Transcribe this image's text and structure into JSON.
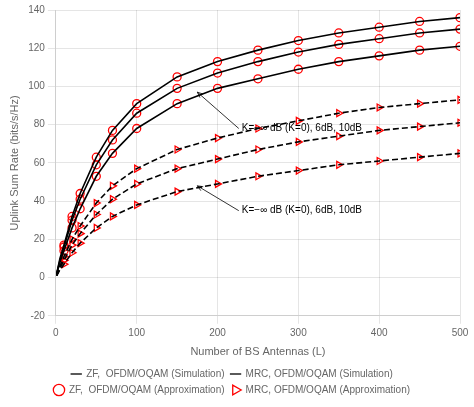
{
  "chart_data": {
    "type": "line",
    "xlabel": "Number of BS Antennas (L)",
    "ylabel": "Uplink Sum Rate (bits/s/Hz)",
    "xlim": [
      0,
      500
    ],
    "ylim": [
      -20,
      140
    ],
    "xticks": [
      0,
      100,
      200,
      300,
      400,
      500
    ],
    "yticks": [
      -20,
      0,
      20,
      40,
      60,
      80,
      100,
      120,
      140
    ],
    "grid": true,
    "legend": "bottom",
    "series": [
      {
        "name": "ZF,  OFDM/OQAM (Simulation)",
        "color": "#000000",
        "line_style": "solid",
        "marker": "none",
        "x": [
          1,
          5,
          10,
          20,
          30,
          50,
          70,
          100,
          150,
          200,
          250,
          300,
          350,
          400,
          450,
          500
        ],
        "values": [
          2,
          8,
          14,
          26,
          36,
          53,
          65,
          78,
          91,
          99,
          104,
          109,
          113,
          116,
          119,
          121
        ]
      },
      {
        "color": "#000000",
        "line_style": "solid",
        "marker": "none",
        "x": [
          1,
          5,
          10,
          20,
          30,
          50,
          70,
          100,
          150,
          200,
          250,
          300,
          350,
          400,
          450,
          500
        ],
        "values": [
          2,
          9,
          16,
          30,
          41,
          59,
          72,
          86,
          99,
          107,
          113,
          118,
          122,
          125,
          128,
          130
        ]
      },
      {
        "color": "#000000",
        "line_style": "solid",
        "marker": "none",
        "x": [
          1,
          5,
          10,
          20,
          30,
          50,
          70,
          100,
          150,
          200,
          250,
          300,
          350,
          400,
          450,
          500
        ],
        "values": [
          2,
          10,
          17,
          32,
          44,
          63,
          77,
          91,
          105,
          113,
          119,
          124,
          128,
          131,
          134,
          136
        ]
      },
      {
        "name": "MRC, OFDM/OQAM (Simulation)",
        "color": "#000000",
        "line_style": "dashed",
        "marker": "none",
        "x": [
          1,
          5,
          10,
          20,
          30,
          50,
          70,
          100,
          150,
          200,
          250,
          300,
          350,
          400,
          450,
          500
        ],
        "values": [
          1,
          4,
          7,
          13,
          18,
          26,
          32,
          38,
          45,
          49,
          53,
          56,
          59,
          61,
          63,
          65
        ]
      },
      {
        "color": "#000000",
        "line_style": "dashed",
        "marker": "none",
        "x": [
          1,
          5,
          10,
          20,
          30,
          50,
          70,
          100,
          150,
          200,
          250,
          300,
          350,
          400,
          450,
          500
        ],
        "values": [
          1,
          5,
          9,
          17,
          23,
          33,
          41,
          49,
          57,
          62,
          67,
          71,
          74,
          77,
          79,
          81
        ]
      },
      {
        "color": "#000000",
        "line_style": "dashed",
        "marker": "none",
        "x": [
          1,
          5,
          10,
          20,
          30,
          50,
          70,
          100,
          150,
          200,
          250,
          300,
          350,
          400,
          450,
          500
        ],
        "values": [
          1,
          6,
          11,
          20,
          27,
          39,
          48,
          57,
          67,
          73,
          78,
          82,
          86,
          89,
          91,
          93
        ]
      },
      {
        "name": "ZF,  OFDM/OQAM (Approximation)",
        "color": "#ff0000",
        "line_style": "none",
        "marker": "circle",
        "x": [
          10,
          20,
          30,
          50,
          70,
          100,
          150,
          200,
          250,
          300,
          350,
          400,
          450,
          500
        ],
        "values": [
          14,
          26,
          36,
          53,
          65,
          78,
          91,
          99,
          104,
          109,
          113,
          116,
          119,
          121
        ]
      },
      {
        "color": "#ff0000",
        "line_style": "none",
        "marker": "circle",
        "x": [
          10,
          20,
          30,
          50,
          70,
          100,
          150,
          200,
          250,
          300,
          350,
          400,
          450,
          500
        ],
        "values": [
          16,
          30,
          41,
          59,
          72,
          86,
          99,
          107,
          113,
          118,
          122,
          125,
          128,
          130
        ]
      },
      {
        "color": "#ff0000",
        "line_style": "none",
        "marker": "circle",
        "x": [
          10,
          20,
          30,
          50,
          70,
          100,
          150,
          200,
          250,
          300,
          350,
          400,
          450,
          500
        ],
        "values": [
          17,
          32,
          44,
          63,
          77,
          91,
          105,
          113,
          119,
          124,
          128,
          131,
          134,
          136
        ]
      },
      {
        "name": "MRC, OFDM/OQAM (Approximation)",
        "color": "#ff0000",
        "line_style": "none",
        "marker": "triangle-right",
        "x": [
          10,
          20,
          30,
          50,
          70,
          100,
          150,
          200,
          250,
          300,
          350,
          400,
          450,
          500
        ],
        "values": [
          7,
          13,
          18,
          26,
          32,
          38,
          45,
          49,
          53,
          56,
          59,
          61,
          63,
          65
        ]
      },
      {
        "color": "#ff0000",
        "line_style": "none",
        "marker": "triangle-right",
        "x": [
          10,
          20,
          30,
          50,
          70,
          100,
          150,
          200,
          250,
          300,
          350,
          400,
          450,
          500
        ],
        "values": [
          9,
          17,
          23,
          33,
          41,
          49,
          57,
          62,
          67,
          71,
          74,
          77,
          79,
          81
        ]
      },
      {
        "color": "#ff0000",
        "line_style": "none",
        "marker": "triangle-right",
        "x": [
          10,
          20,
          30,
          50,
          70,
          100,
          150,
          200,
          250,
          300,
          350,
          400,
          450,
          500
        ],
        "values": [
          11,
          20,
          27,
          39,
          48,
          57,
          67,
          73,
          78,
          82,
          86,
          89,
          91,
          93
        ]
      }
    ],
    "annotations": [
      {
        "text": "K=−∞ dB (K=0), 6dB, 10dB",
        "x": 230,
        "y": 78,
        "arrow_x": 175,
        "arrow_y": 97
      },
      {
        "text": "K=−∞ dB (K=0), 6dB, 10dB",
        "x": 230,
        "y": 35,
        "arrow_x": 175,
        "arrow_y": 48
      }
    ]
  }
}
